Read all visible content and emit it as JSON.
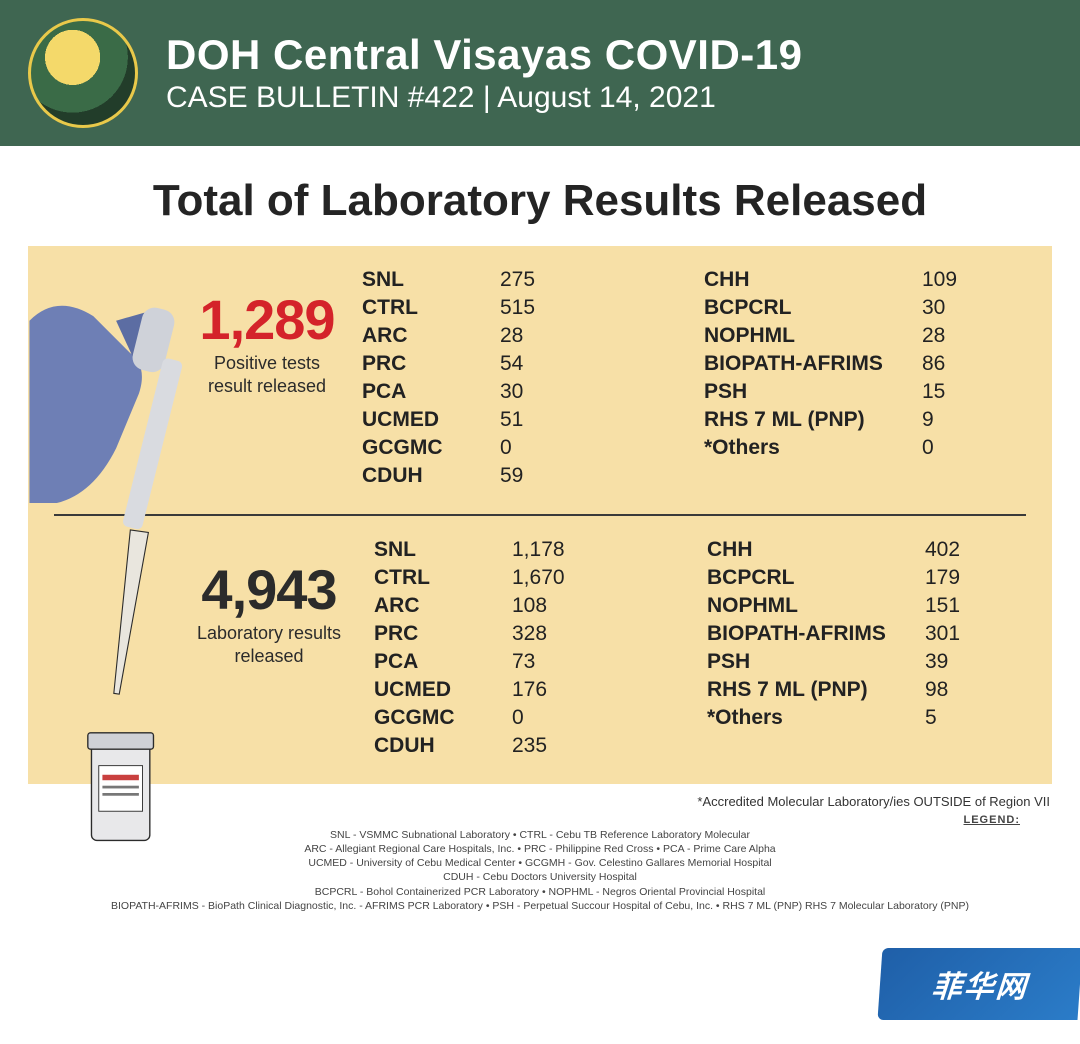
{
  "colors": {
    "header_bg": "#3f6651",
    "card_bg": "#f7e0a7",
    "title_text": "#242424",
    "positive_num": "#d4232a",
    "lab_num": "#2b2b2b",
    "hand": "#6e7fb5",
    "pipette_body": "#d9dbe0",
    "pipette_tip": "#e9e6de",
    "vial_body": "#e8e8ea",
    "vial_line": "#c9403f",
    "watermark_bg": "#2b7cc8"
  },
  "header": {
    "title": "DOH Central Visayas COVID-19",
    "subtitle": "CASE BULLETIN #422 | August 14, 2021",
    "seal_alt": "Republic of the Philippines — Department of Health seal"
  },
  "main_title": "Total of Laboratory Results Released",
  "positive": {
    "value": "1,289",
    "label": "Positive tests result released",
    "labs_col1": [
      {
        "name": "SNL",
        "value": "275"
      },
      {
        "name": "CTRL",
        "value": "515"
      },
      {
        "name": "ARC",
        "value": "28"
      },
      {
        "name": "PRC",
        "value": "54"
      },
      {
        "name": "PCA",
        "value": "30"
      },
      {
        "name": "UCMED",
        "value": "51"
      },
      {
        "name": "GCGMC",
        "value": "0"
      },
      {
        "name": "CDUH",
        "value": "59"
      }
    ],
    "labs_col2": [
      {
        "name": "CHH",
        "value": "109"
      },
      {
        "name": "BCPCRL",
        "value": "30"
      },
      {
        "name": "NOPHML",
        "value": "28"
      },
      {
        "name": "BIOPATH-AFRIMS",
        "value": "86"
      },
      {
        "name": "PSH",
        "value": "15"
      },
      {
        "name": "RHS 7 ML (PNP)",
        "value": "9"
      },
      {
        "name": "*Others",
        "value": "0"
      }
    ]
  },
  "total": {
    "value": "4,943",
    "label": "Laboratory results released",
    "labs_col1": [
      {
        "name": "SNL",
        "value": "1,178"
      },
      {
        "name": "CTRL",
        "value": "1,670"
      },
      {
        "name": "ARC",
        "value": "108"
      },
      {
        "name": "PRC",
        "value": "328"
      },
      {
        "name": "PCA",
        "value": "73"
      },
      {
        "name": "UCMED",
        "value": "176"
      },
      {
        "name": "GCGMC",
        "value": "0"
      },
      {
        "name": "CDUH",
        "value": "235"
      }
    ],
    "labs_col2": [
      {
        "name": "CHH",
        "value": "402"
      },
      {
        "name": "BCPCRL",
        "value": "179"
      },
      {
        "name": "NOPHML",
        "value": "151"
      },
      {
        "name": "BIOPATH-AFRIMS",
        "value": "301"
      },
      {
        "name": "PSH",
        "value": "39"
      },
      {
        "name": "RHS 7 ML (PNP)",
        "value": "98"
      },
      {
        "name": "*Others",
        "value": "5"
      }
    ]
  },
  "footnote": "*Accredited Molecular Laboratory/ies OUTSIDE of Region VII",
  "legend": {
    "heading": "LEGEND:",
    "lines": [
      "SNL - VSMMC Subnational Laboratory • CTRL - Cebu TB Reference Laboratory Molecular",
      "ARC - Allegiant Regional Care Hospitals, Inc. • PRC - Philippine Red Cross • PCA - Prime Care Alpha",
      "UCMED - University of Cebu Medical Center • GCGMH - Gov. Celestino Gallares Memorial Hospital",
      "CDUH - Cebu Doctors University Hospital",
      "BCPCRL - Bohol Containerized PCR Laboratory • NOPHML - Negros Oriental Provincial Hospital",
      "BIOPATH-AFRIMS - BioPath Clinical Diagnostic, Inc. - AFRIMS PCR Laboratory • PSH - Perpetual Succour Hospital of Cebu, Inc. • RHS 7 ML (PNP) RHS 7 Molecular Laboratory (PNP)"
    ]
  },
  "watermark": "菲华网"
}
